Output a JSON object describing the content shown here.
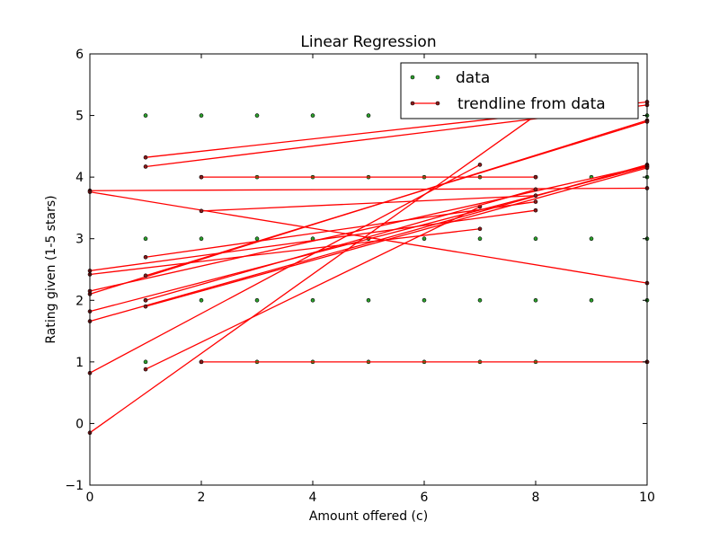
{
  "chart_data": {
    "type": "scatter",
    "title": "Linear Regression",
    "xlabel": "Amount offered (c)",
    "ylabel": "Rating given (1-5 stars)",
    "xlim": [
      0,
      10
    ],
    "ylim": [
      -1,
      6
    ],
    "xticks": [
      0,
      2,
      4,
      6,
      8,
      10
    ],
    "yticks": [
      -1,
      0,
      1,
      2,
      3,
      4,
      5,
      6
    ],
    "grid": false,
    "legend_position": "top-right",
    "series": [
      {
        "name": "data",
        "kind": "points",
        "color": "#2ca02c",
        "points": [
          [
            1,
            5
          ],
          [
            2,
            5
          ],
          [
            3,
            5
          ],
          [
            4,
            5
          ],
          [
            5,
            5
          ],
          [
            6,
            5
          ],
          [
            7,
            5
          ],
          [
            8,
            5
          ],
          [
            10,
            5
          ],
          [
            2,
            4
          ],
          [
            3,
            4
          ],
          [
            4,
            4
          ],
          [
            5,
            4
          ],
          [
            6,
            4
          ],
          [
            7,
            4
          ],
          [
            8,
            4
          ],
          [
            9,
            4
          ],
          [
            10,
            4
          ],
          [
            1,
            3
          ],
          [
            2,
            3
          ],
          [
            3,
            3
          ],
          [
            4,
            3
          ],
          [
            5,
            3
          ],
          [
            6,
            3
          ],
          [
            7,
            3
          ],
          [
            8,
            3
          ],
          [
            9,
            3
          ],
          [
            10,
            3
          ],
          [
            1,
            2
          ],
          [
            2,
            2
          ],
          [
            3,
            2
          ],
          [
            4,
            2
          ],
          [
            5,
            2
          ],
          [
            6,
            2
          ],
          [
            7,
            2
          ],
          [
            8,
            2
          ],
          [
            9,
            2
          ],
          [
            10,
            2
          ],
          [
            1,
            1
          ],
          [
            2,
            1
          ],
          [
            3,
            1
          ],
          [
            4,
            1
          ],
          [
            5,
            1
          ],
          [
            6,
            1
          ],
          [
            7,
            1
          ],
          [
            8,
            1
          ],
          [
            10,
            1
          ]
        ]
      },
      {
        "name": "trendline from data",
        "kind": "lines",
        "color": "#ff0000",
        "marker_color": "#8b1a1a",
        "lines": [
          {
            "x": [
              1,
              10
            ],
            "y": [
              4.32,
              5.22
            ]
          },
          {
            "x": [
              1,
              10
            ],
            "y": [
              4.17,
              5.17
            ]
          },
          {
            "x": [
              2,
              8
            ],
            "y": [
              4.0,
              4.0
            ]
          },
          {
            "x": [
              0,
              10
            ],
            "y": [
              3.78,
              3.82
            ]
          },
          {
            "x": [
              0,
              10
            ],
            "y": [
              3.76,
              2.28
            ]
          },
          {
            "x": [
              2,
              10
            ],
            "y": [
              1.0,
              1.0
            ]
          },
          {
            "x": [
              0,
              8
            ],
            "y": [
              -0.15,
              5.0
            ]
          },
          {
            "x": [
              0,
              7
            ],
            "y": [
              0.82,
              4.2
            ]
          },
          {
            "x": [
              1,
              7
            ],
            "y": [
              0.88,
              3.52
            ]
          },
          {
            "x": [
              0,
              10
            ],
            "y": [
              1.66,
              4.2
            ]
          },
          {
            "x": [
              0,
              10
            ],
            "y": [
              1.82,
              4.17
            ]
          },
          {
            "x": [
              0,
              10
            ],
            "y": [
              2.1,
              4.92
            ]
          },
          {
            "x": [
              0,
              10
            ],
            "y": [
              2.15,
              4.18
            ]
          },
          {
            "x": [
              0,
              8
            ],
            "y": [
              2.48,
              3.46
            ]
          },
          {
            "x": [
              0,
              7
            ],
            "y": [
              2.42,
              3.16
            ]
          },
          {
            "x": [
              1,
              8
            ],
            "y": [
              2.0,
              3.8
            ]
          },
          {
            "x": [
              1,
              8
            ],
            "y": [
              2.7,
              3.6
            ]
          },
          {
            "x": [
              1,
              10
            ],
            "y": [
              1.9,
              4.15
            ]
          },
          {
            "x": [
              1,
              10
            ],
            "y": [
              2.4,
              4.9
            ]
          },
          {
            "x": [
              2,
              8
            ],
            "y": [
              3.45,
              3.7
            ]
          }
        ]
      }
    ]
  }
}
